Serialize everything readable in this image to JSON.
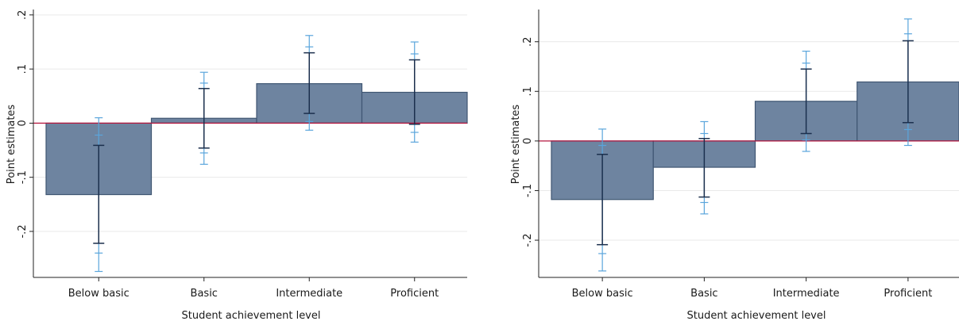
{
  "colors": {
    "bar_fill": "#6e84a0",
    "bar_stroke": "#3f5672",
    "ci_inner": "#1b2f4d",
    "ci_outer": "#5aa5dc",
    "zero_line": "#b5173f",
    "grid": "#e9e9e9",
    "axis": "#222222"
  },
  "chart_data": [
    {
      "type": "bar",
      "xlabel": "Student achievement level",
      "ylabel": "Point estimates",
      "categories": [
        "Below basic",
        "Basic",
        "Intermediate",
        "Proficient"
      ],
      "values": [
        -0.132,
        0.009,
        0.073,
        0.057
      ],
      "ci_inner": [
        [
          -0.222,
          -0.041
        ],
        [
          -0.046,
          0.064
        ],
        [
          0.018,
          0.13
        ],
        [
          -0.002,
          0.117
        ]
      ],
      "ci_outer": [
        [
          -0.274,
          0.01
        ],
        [
          -0.076,
          0.094
        ],
        [
          -0.013,
          0.162
        ],
        [
          -0.035,
          0.15
        ]
      ],
      "ci_outer_caps_inner": [
        [
          -0.24,
          -0.022
        ],
        [
          -0.055,
          0.074
        ],
        [
          0.003,
          0.141
        ],
        [
          -0.017,
          0.128
        ]
      ],
      "yticks": [
        -0.2,
        -0.1,
        0,
        0.1,
        0.2
      ],
      "ytick_labels": [
        "-.2",
        "-.1",
        "0",
        ".1",
        ".2"
      ],
      "ylim": [
        -0.285,
        0.21
      ],
      "grid": true,
      "reference_line": 0
    },
    {
      "type": "bar",
      "xlabel": "Student achievement level",
      "ylabel": "Point estimates",
      "categories": [
        "Below basic",
        "Basic",
        "Intermediate",
        "Proficient"
      ],
      "values": [
        -0.118,
        -0.053,
        0.08,
        0.119
      ],
      "ci_inner": [
        [
          -0.209,
          -0.027
        ],
        [
          -0.113,
          0.005
        ],
        [
          0.015,
          0.145
        ],
        [
          0.037,
          0.202
        ]
      ],
      "ci_outer": [
        [
          -0.262,
          0.024
        ],
        [
          -0.147,
          0.039
        ],
        [
          -0.021,
          0.181
        ],
        [
          -0.009,
          0.246
        ]
      ],
      "ci_outer_caps_inner": [
        [
          -0.227,
          -0.009
        ],
        [
          -0.124,
          0.015
        ],
        [
          0.002,
          0.157
        ],
        [
          0.023,
          0.216
        ]
      ],
      "yticks": [
        -0.2,
        -0.1,
        0,
        0.1,
        0.2
      ],
      "ytick_labels": [
        "-.2",
        "-.1",
        "0",
        ".1",
        ".2"
      ],
      "ylim": [
        -0.275,
        0.265
      ],
      "grid": true,
      "reference_line": 0
    }
  ]
}
